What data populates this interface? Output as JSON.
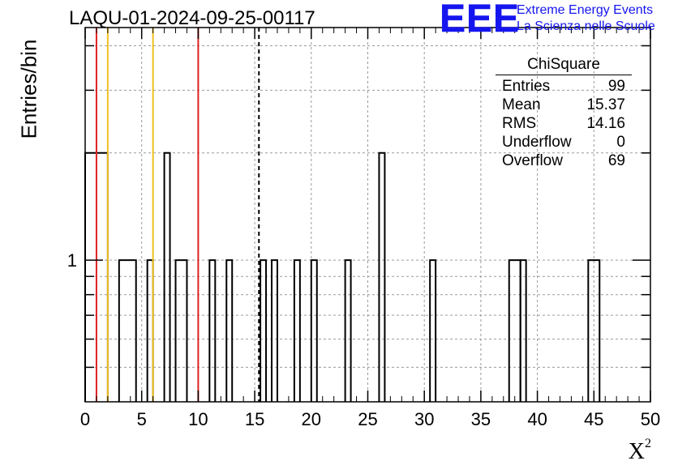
{
  "title": "LAQU-01-2024-09-25-00117",
  "logo": {
    "mark": "EEE",
    "line1": "Extreme Energy Events",
    "line2": "La Scienza nelle Scuole",
    "color": "#1515f0"
  },
  "stats": {
    "title": "ChiSquare",
    "rows": [
      {
        "label": "Entries",
        "value": "99"
      },
      {
        "label": "Mean",
        "value": "15.37"
      },
      {
        "label": "RMS",
        "value": "14.16"
      },
      {
        "label": "Underflow",
        "value": "0"
      },
      {
        "label": "Overflow",
        "value": "69"
      }
    ]
  },
  "chart_data": {
    "type": "bar",
    "histogram": "step",
    "ylabel": "Entries/bin",
    "xlabel": "X",
    "xlabel_sup": "2",
    "xlim": [
      0,
      50
    ],
    "ylim": [
      0.4,
      4.5
    ],
    "yscale": "log",
    "grid": true,
    "bin_width": 0.5,
    "bins": [
      {
        "x0": 0.0,
        "x1": 2.0,
        "value": 2
      },
      {
        "x0": 3.0,
        "x1": 4.5,
        "value": 1
      },
      {
        "x0": 5.5,
        "x1": 6.0,
        "value": 1
      },
      {
        "x0": 7.0,
        "x1": 7.5,
        "value": 2
      },
      {
        "x0": 8.0,
        "x1": 9.0,
        "value": 1
      },
      {
        "x0": 11.0,
        "x1": 11.5,
        "value": 1
      },
      {
        "x0": 12.5,
        "x1": 13.0,
        "value": 1
      },
      {
        "x0": 15.5,
        "x1": 16.0,
        "value": 1
      },
      {
        "x0": 16.5,
        "x1": 17.0,
        "value": 1
      },
      {
        "x0": 18.5,
        "x1": 19.0,
        "value": 1
      },
      {
        "x0": 20.0,
        "x1": 20.5,
        "value": 1
      },
      {
        "x0": 23.0,
        "x1": 23.5,
        "value": 1
      },
      {
        "x0": 26.0,
        "x1": 26.5,
        "value": 2
      },
      {
        "x0": 30.5,
        "x1": 31.0,
        "value": 1
      },
      {
        "x0": 37.5,
        "x1": 38.5,
        "value": 1
      },
      {
        "x0": 38.5,
        "x1": 39.0,
        "value": 1
      },
      {
        "x0": 44.5,
        "x1": 45.5,
        "value": 1
      }
    ],
    "xticks": [
      0,
      5,
      10,
      15,
      20,
      25,
      30,
      35,
      40,
      45,
      50
    ],
    "yticks_labeled": [
      1
    ],
    "vlines": [
      {
        "x": 1.0,
        "color": "#dd2222",
        "style": "solid"
      },
      {
        "x": 2.0,
        "color": "#f0c020",
        "style": "solid"
      },
      {
        "x": 6.0,
        "color": "#f0c020",
        "style": "solid"
      },
      {
        "x": 10.0,
        "color": "#dd2222",
        "style": "solid"
      },
      {
        "x": 15.37,
        "color": "#000000",
        "style": "dashed"
      }
    ]
  }
}
